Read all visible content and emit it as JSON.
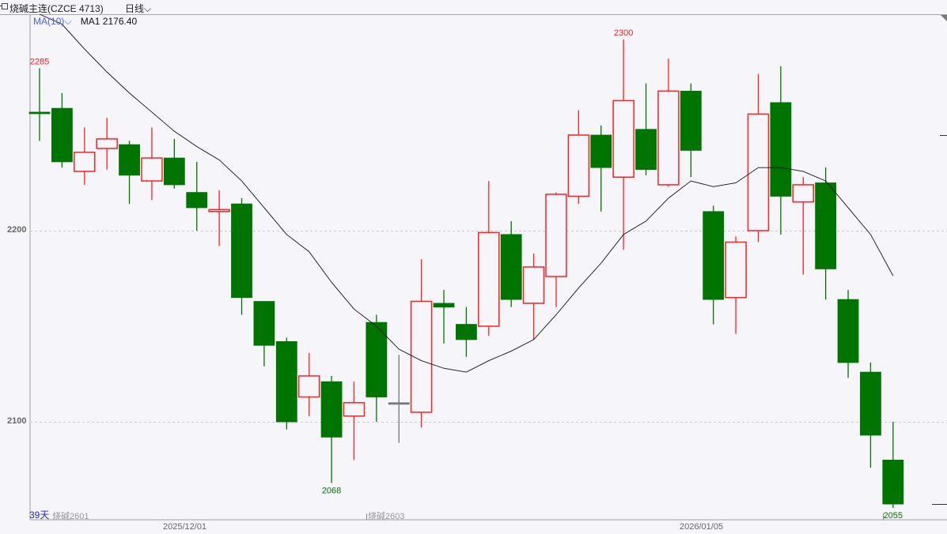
{
  "header": {
    "title": "烧碱主连(CZCE 4713)",
    "period": "日线",
    "period_icon": "chevron-down-icon"
  },
  "indicator": {
    "selector": "MA(10)",
    "selector_icon": "chevron-down-icon",
    "value_text": "MA1 2176.40"
  },
  "footer": {
    "days": "39天",
    "contract_1": "烧碱2601",
    "contract_2": "烧碱2603"
  },
  "colors": {
    "up": "#ff2020",
    "down": "#007400",
    "doji": "#777777",
    "ma": "#111111",
    "background": "#f5f5fa",
    "ma_selector": "#4a5cff"
  },
  "chart_data": {
    "type": "candlestick",
    "y_ticks": [
      "2200",
      "2100"
    ],
    "ylim": [
      2050,
      2320
    ],
    "grid": "horizontal dashed",
    "x_ticks": [
      {
        "label": "2025/12/01",
        "index": 7
      },
      {
        "label": "2026/01/05",
        "index": 30
      }
    ],
    "candles": [
      {
        "o": 2262,
        "h": 2285,
        "l": 2247,
        "c": 2262
      },
      {
        "o": 2264,
        "h": 2272,
        "l": 2233,
        "c": 2236
      },
      {
        "o": 2231,
        "h": 2254,
        "l": 2224,
        "c": 2241
      },
      {
        "o": 2243,
        "h": 2259,
        "l": 2232,
        "c": 2248
      },
      {
        "o": 2245,
        "h": 2247,
        "l": 2214,
        "c": 2229
      },
      {
        "o": 2226,
        "h": 2254,
        "l": 2216,
        "c": 2238
      },
      {
        "o": 2238,
        "h": 2248,
        "l": 2222,
        "c": 2224
      },
      {
        "o": 2220,
        "h": 2236,
        "l": 2200,
        "c": 2212
      },
      {
        "o": 2210,
        "h": 2221,
        "l": 2192,
        "c": 2211
      },
      {
        "o": 2214,
        "h": 2217,
        "l": 2156,
        "c": 2165
      },
      {
        "o": 2163,
        "h": 2163,
        "l": 2129,
        "c": 2140
      },
      {
        "o": 2142,
        "h": 2144,
        "l": 2096,
        "c": 2100
      },
      {
        "o": 2113,
        "h": 2136,
        "l": 2103,
        "c": 2124
      },
      {
        "o": 2121,
        "h": 2124,
        "l": 2068,
        "c": 2092
      },
      {
        "o": 2103,
        "h": 2121,
        "l": 2080,
        "c": 2110
      },
      {
        "o": 2152,
        "h": 2156,
        "l": 2100,
        "c": 2113
      },
      {
        "o": 2110,
        "h": 2135,
        "l": 2089,
        "c": 2110
      },
      {
        "o": 2105,
        "h": 2185,
        "l": 2097,
        "c": 2163
      },
      {
        "o": 2162,
        "h": 2169,
        "l": 2141,
        "c": 2160
      },
      {
        "o": 2151,
        "h": 2160,
        "l": 2134,
        "c": 2143
      },
      {
        "o": 2150,
        "h": 2226,
        "l": 2145,
        "c": 2199
      },
      {
        "o": 2198,
        "h": 2205,
        "l": 2160,
        "c": 2164
      },
      {
        "o": 2162,
        "h": 2188,
        "l": 2143,
        "c": 2181
      },
      {
        "o": 2176,
        "h": 2220,
        "l": 2160,
        "c": 2219
      },
      {
        "o": 2218,
        "h": 2263,
        "l": 2214,
        "c": 2250
      },
      {
        "o": 2250,
        "h": 2255,
        "l": 2210,
        "c": 2233
      },
      {
        "o": 2228,
        "h": 2300,
        "l": 2190,
        "c": 2268
      },
      {
        "o": 2253,
        "h": 2277,
        "l": 2229,
        "c": 2232
      },
      {
        "o": 2224,
        "h": 2290,
        "l": 2223,
        "c": 2273
      },
      {
        "o": 2273,
        "h": 2277,
        "l": 2228,
        "c": 2242
      },
      {
        "o": 2210,
        "h": 2213,
        "l": 2151,
        "c": 2164
      },
      {
        "o": 2165,
        "h": 2197,
        "l": 2146,
        "c": 2194
      },
      {
        "o": 2200,
        "h": 2282,
        "l": 2194,
        "c": 2261
      },
      {
        "o": 2267,
        "h": 2286,
        "l": 2198,
        "c": 2218
      },
      {
        "o": 2215,
        "h": 2228,
        "l": 2177,
        "c": 2224
      },
      {
        "o": 2225,
        "h": 2233,
        "l": 2164,
        "c": 2180
      },
      {
        "o": 2164,
        "h": 2169,
        "l": 2123,
        "c": 2131
      },
      {
        "o": 2126,
        "h": 2131,
        "l": 2076,
        "c": 2093
      },
      {
        "o": 2080,
        "h": 2100,
        "l": 2055,
        "c": 2057
      }
    ],
    "ma10": [
      2316,
      2308,
      2295,
      2283,
      2272,
      2262,
      2252,
      2244,
      2237,
      2226,
      2212,
      2198,
      2189,
      2173,
      2159,
      2150,
      2138,
      2132,
      2128,
      2126,
      2132,
      2137,
      2143,
      2156,
      2170,
      2183,
      2198,
      2205,
      2217,
      2226,
      2223,
      2225,
      2233,
      2233,
      2231,
      2226,
      2212,
      2198,
      2176.4
    ],
    "annotations": [
      {
        "text": "2285",
        "index": 0,
        "at": "high",
        "color": "#ff2020"
      },
      {
        "text": "2300",
        "index": 26,
        "at": "high",
        "color": "#ff2020"
      },
      {
        "text": "2068",
        "index": 13,
        "at": "low",
        "color": "#007400"
      },
      {
        "text": "2055",
        "index": 38,
        "at": "low",
        "color": "#007400"
      }
    ]
  }
}
